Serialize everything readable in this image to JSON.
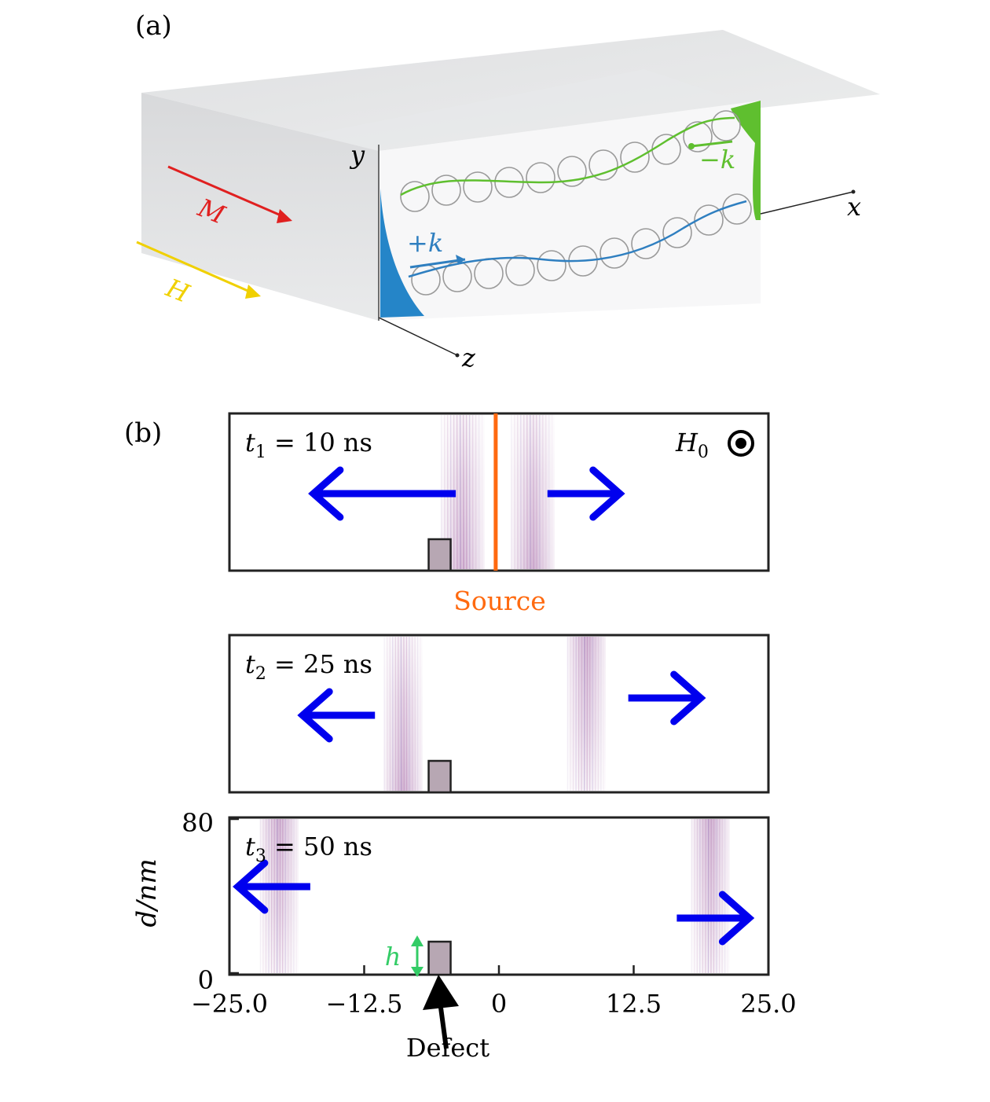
{
  "panel_a": {
    "label": "(a)",
    "axis_x": "x",
    "axis_y": "y",
    "axis_z": "z",
    "magnetization": "M",
    "field": "H",
    "plus_k": "+k",
    "minus_k": "−k",
    "colors": {
      "magnetization": "#e02020",
      "field": "#f0d000",
      "plus_k": "#2f7fc0",
      "minus_k": "#5fbf2f",
      "slab": "#e6e7e9"
    }
  },
  "panel_b": {
    "label": "(b)",
    "frames": [
      {
        "time_prefix": "t",
        "time_sub": "1",
        "time_rest": " = 10 ns",
        "show_field": true,
        "show_source": true,
        "left_pulse_x": -3.5,
        "right_pulse_x": 3.0
      },
      {
        "time_prefix": "t",
        "time_sub": "2",
        "time_rest": " = 25 ns",
        "show_field": false,
        "show_source": false,
        "left_pulse_x": -9.0,
        "right_pulse_x": 8.0
      },
      {
        "time_prefix": "t",
        "time_sub": "3",
        "time_rest": " = 50 ns",
        "show_field": false,
        "show_source": false,
        "left_pulse_x": -20.5,
        "right_pulse_x": 19.5
      }
    ],
    "field_label_main": "H",
    "field_label_sub": "0",
    "source_label": "Source",
    "defect_label": "Defect",
    "height_label": "h",
    "y_axis_label": "d/nm",
    "y_ticks": [
      "80",
      "0"
    ],
    "x_ticks": [
      "−25.0",
      "−12.5",
      "0",
      "12.5",
      "25.0"
    ],
    "colors": {
      "arrow": "#0000ee",
      "source": "#ff6a10",
      "defect_fill": "#b7a7b3",
      "height_arrow": "#33cc66",
      "pulse": "#8a3f8f"
    }
  }
}
